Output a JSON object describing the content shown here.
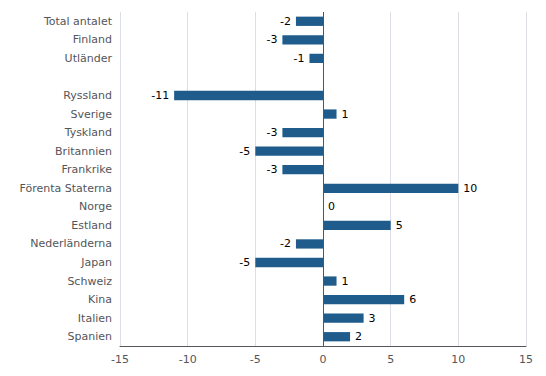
{
  "chart_data": {
    "type": "bar",
    "orientation": "horizontal",
    "categories": [
      "Total antalet",
      "Finland",
      "Utländer",
      null,
      "Ryssland",
      "Sverige",
      "Tyskland",
      "Britannien",
      "Frankrike",
      "Förenta Staterna",
      "Norge",
      "Estland",
      "Nederländerna",
      "Japan",
      "Schweiz",
      "Kina",
      "Italien",
      "Spanien"
    ],
    "values": [
      -2,
      -3,
      -1,
      null,
      -11,
      1,
      -3,
      -5,
      -3,
      10,
      0,
      5,
      -2,
      -5,
      1,
      6,
      3,
      2
    ],
    "color": "#1F5C8B",
    "xlim": [
      -15,
      15
    ],
    "xticks": [
      -15,
      -10,
      -5,
      0,
      5,
      10,
      15
    ],
    "grid": true,
    "data_labels": true
  }
}
